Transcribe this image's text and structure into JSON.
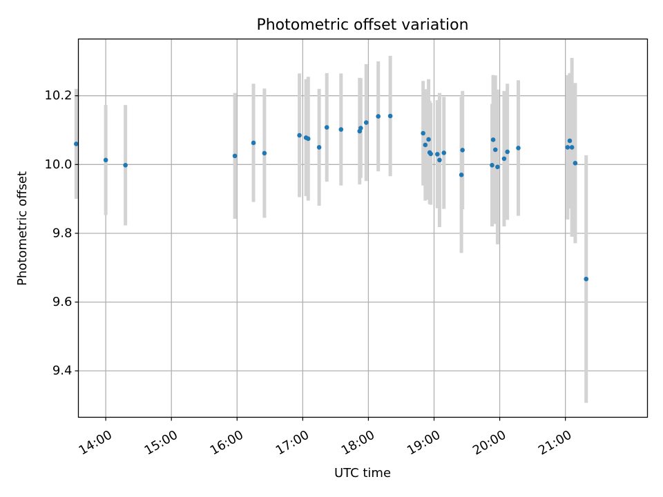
{
  "chart_data": {
    "type": "scatter",
    "title": "Photometric offset variation",
    "xlabel": "UTC time",
    "ylabel": "Photometric offset",
    "xlim": [
      "13:35",
      "22:15"
    ],
    "ylim": [
      9.265,
      10.365
    ],
    "grid": true,
    "legend": "none",
    "x_ticks": [
      "14:00",
      "15:00",
      "16:00",
      "17:00",
      "18:00",
      "19:00",
      "20:00",
      "21:00"
    ],
    "y_ticks": [
      "9.4",
      "9.6",
      "9.8",
      "10.0",
      "10.2"
    ],
    "point_color": "#1f77b4",
    "errorbar_color": "#d3d3d3",
    "series": [
      {
        "x": [
          "13:33",
          "14:00",
          "14:18",
          "15:58",
          "16:15",
          "16:25",
          "16:57",
          "17:03",
          "17:05",
          "17:15",
          "17:22",
          "17:35",
          "17:52",
          "17:53",
          "17:58",
          "18:09",
          "18:20",
          "18:50",
          "18:52",
          "18:55",
          "18:56",
          "18:57",
          "19:03",
          "19:05",
          "19:09",
          "19:25",
          "19:26",
          "19:53",
          "19:54",
          "19:56",
          "19:58",
          "20:04",
          "20:07",
          "20:17",
          "21:02",
          "21:04",
          "21:06",
          "21:09",
          "21:19"
        ],
        "y": [
          10.06,
          10.013,
          9.998,
          10.025,
          10.063,
          10.033,
          10.085,
          10.078,
          10.075,
          10.05,
          10.108,
          10.102,
          10.097,
          10.106,
          10.122,
          10.14,
          10.141,
          10.091,
          10.057,
          10.073,
          10.035,
          10.031,
          10.03,
          10.013,
          10.034,
          9.97,
          10.042,
          9.998,
          10.072,
          10.043,
          9.993,
          10.017,
          10.037,
          10.048,
          10.05,
          10.069,
          10.05,
          10.004,
          9.667
        ],
        "err": [
          0.16,
          0.16,
          0.175,
          0.183,
          0.172,
          0.188,
          0.18,
          0.17,
          0.18,
          0.17,
          0.158,
          0.163,
          0.155,
          0.145,
          0.17,
          0.16,
          0.175,
          0.152,
          0.162,
          0.175,
          0.15,
          0.148,
          0.157,
          0.195,
          0.163,
          0.227,
          0.172,
          0.178,
          0.188,
          0.216,
          0.225,
          0.197,
          0.198,
          0.197,
          0.21,
          0.197,
          0.26,
          0.233,
          0.36
        ]
      }
    ]
  }
}
